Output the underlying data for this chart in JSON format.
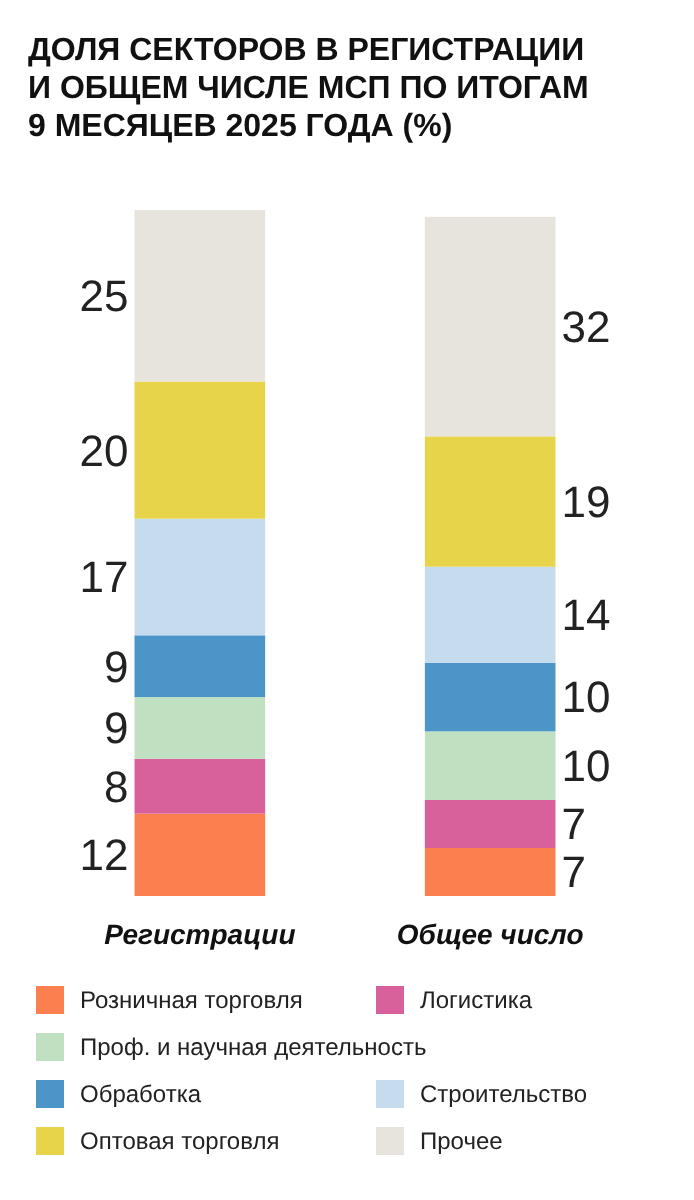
{
  "chart_data": {
    "type": "bar",
    "title": "ДОЛЯ СЕКТОРОВ В РЕГИСТРАЦИИ И ОБЩЕМ ЧИСЛЕ МСП ПО ИТОГАМ 9 МЕСЯЦЕВ 2025 ГОДА (%)",
    "categories": [
      "Регистрации",
      "Общее число"
    ],
    "stacked": true,
    "data_labels": true,
    "legend": "bottom",
    "series": [
      {
        "name": "Розничная торговля",
        "color": "#fb7f4f",
        "values": [
          12,
          7
        ]
      },
      {
        "name": "Логистика",
        "color": "#d9619b",
        "values": [
          8,
          7
        ]
      },
      {
        "name": "Проф. и научная деятельность",
        "color": "#c0e0c2",
        "values": [
          9,
          10
        ]
      },
      {
        "name": "Обработка",
        "color": "#4b95c9",
        "values": [
          9,
          10
        ]
      },
      {
        "name": "Строительство",
        "color": "#c6dbed",
        "values": [
          17,
          14
        ]
      },
      {
        "name": "Оптовая торговля",
        "color": "#e8d44b",
        "values": [
          20,
          19
        ]
      },
      {
        "name": "Прочее",
        "color": "#e7e4dd",
        "values": [
          25,
          32
        ]
      }
    ]
  }
}
